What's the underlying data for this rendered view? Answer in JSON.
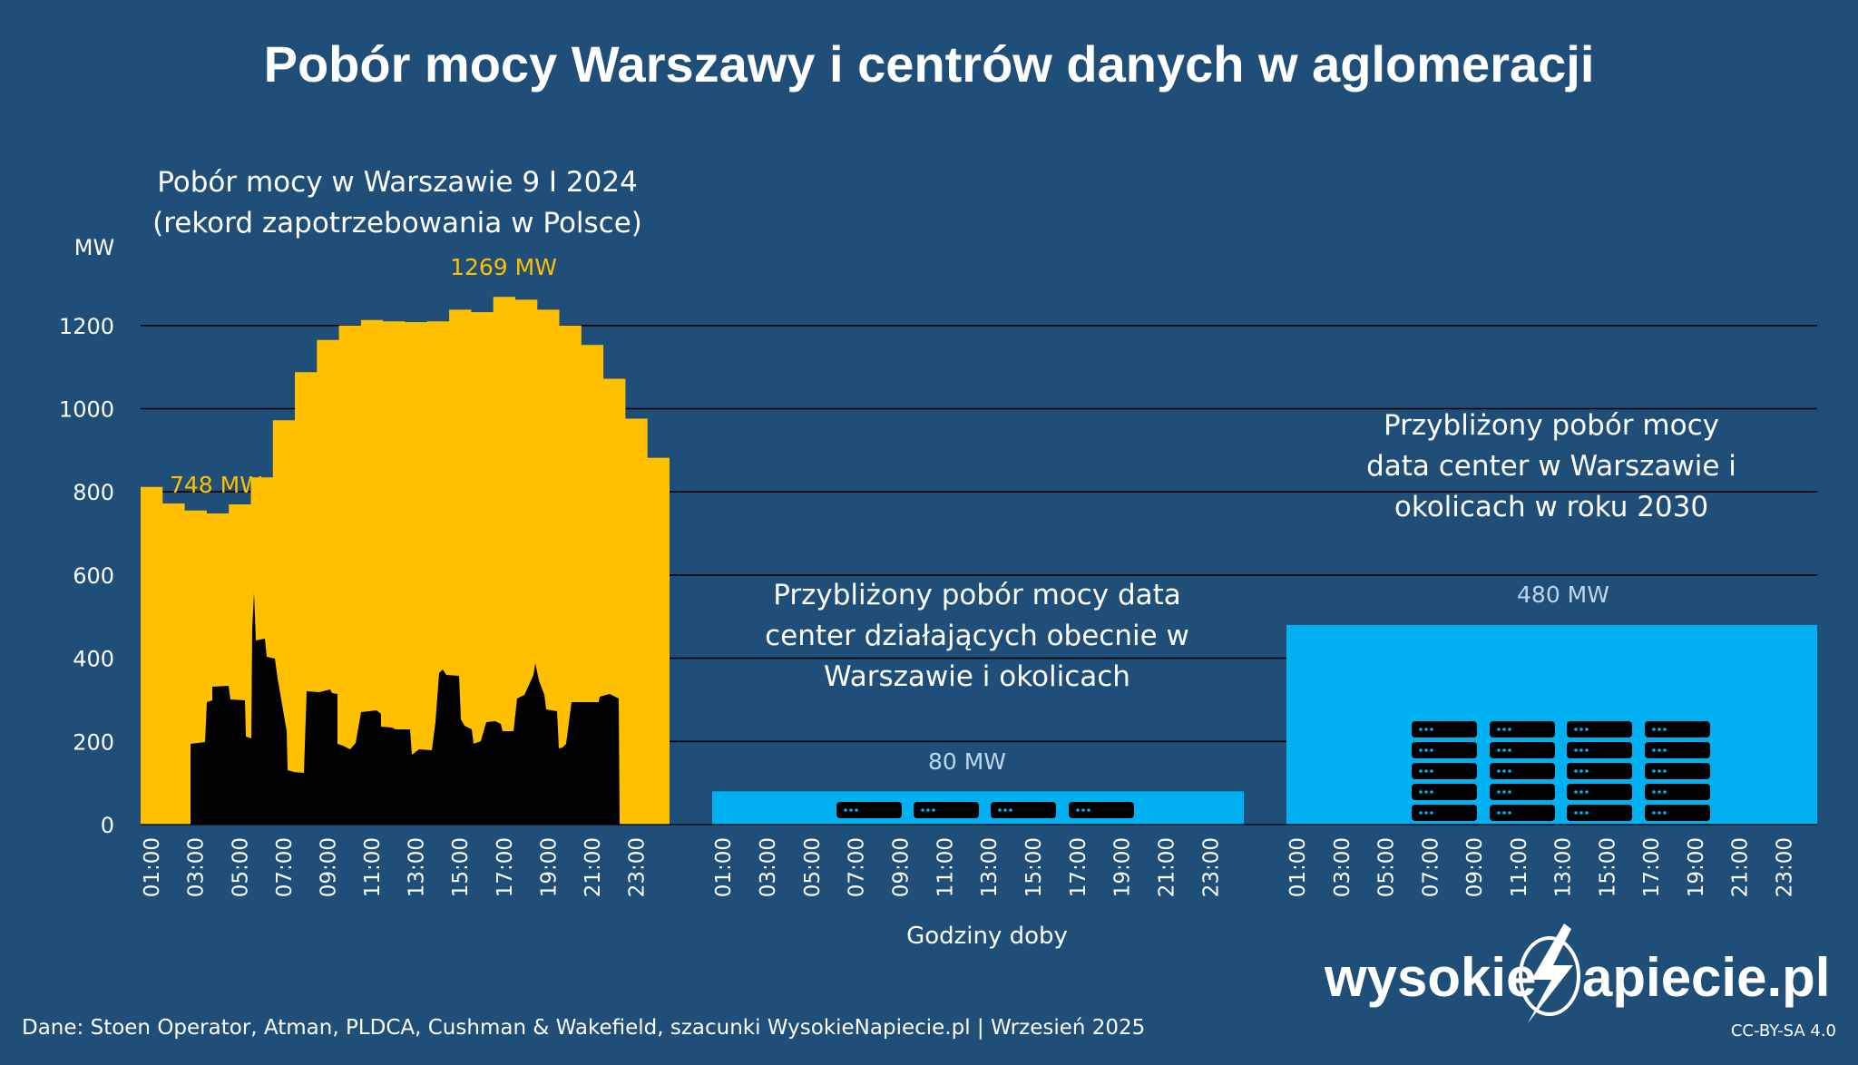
{
  "title": "Pobór mocy Warszawy i centrów danych w aglomeracji",
  "colors": {
    "background": "#1f4e79",
    "warsaw_area": "#ffc000",
    "skyline": "#000000",
    "datacenter": "#00b0f0",
    "label_warsaw": "#ffc000",
    "label_datacenter": "#bdd7ee"
  },
  "chart_data": [
    {
      "type": "area",
      "title": "Pobór mocy w Warszawie 9 I 2024 (rekord zapotrzebowania w Polsce)",
      "title_lines": [
        "Pobór mocy w Warszawie 9 I 2024",
        "(rekord zapotrzebowania w Polsce)"
      ],
      "ylabel": "MW",
      "xlabel": "Godziny doby",
      "ylim": [
        0,
        1300
      ],
      "yticks": [
        0,
        200,
        400,
        600,
        800,
        1000,
        1200
      ],
      "x": [
        "01:00",
        "02:00",
        "03:00",
        "04:00",
        "05:00",
        "06:00",
        "07:00",
        "08:00",
        "09:00",
        "10:00",
        "11:00",
        "12:00",
        "13:00",
        "14:00",
        "15:00",
        "16:00",
        "17:00",
        "18:00",
        "19:00",
        "20:00",
        "21:00",
        "22:00",
        "23:00",
        "24:00"
      ],
      "xtick_labels": [
        "01:00",
        "03:00",
        "05:00",
        "07:00",
        "09:00",
        "11:00",
        "13:00",
        "15:00",
        "17:00",
        "19:00",
        "21:00",
        "23:00"
      ],
      "values": [
        812,
        772,
        755,
        748,
        770,
        835,
        972,
        1088,
        1165,
        1200,
        1213,
        1210,
        1208,
        1210,
        1238,
        1232,
        1269,
        1262,
        1238,
        1200,
        1153,
        1072,
        976,
        882
      ],
      "annotations": [
        {
          "text": "748 MW",
          "hour_index": 3,
          "value": 748
        },
        {
          "text": "1269 MW",
          "hour_index": 16,
          "value": 1269
        }
      ]
    },
    {
      "type": "bar",
      "title": "Przybliżony pobór mocy data center działających obecnie w Warszawie i okolicach",
      "title_lines": [
        "Przybliżony pobór mocy data",
        "center działających obecnie w",
        "Warszawie i okolicach"
      ],
      "x": [
        "01:00",
        "02:00",
        "03:00",
        "04:00",
        "05:00",
        "06:00",
        "07:00",
        "08:00",
        "09:00",
        "10:00",
        "11:00",
        "12:00",
        "13:00",
        "14:00",
        "15:00",
        "16:00",
        "17:00",
        "18:00",
        "19:00",
        "20:00",
        "21:00",
        "22:00",
        "23:00",
        "24:00"
      ],
      "xtick_labels": [
        "01:00",
        "03:00",
        "05:00",
        "07:00",
        "09:00",
        "11:00",
        "13:00",
        "15:00",
        "17:00",
        "19:00",
        "21:00",
        "23:00"
      ],
      "value": 80,
      "label": "80 MW"
    },
    {
      "type": "bar",
      "title": "Przybliżony pobór mocy data center w Warszawie i okolicach w roku 2030",
      "title_lines": [
        "Przybliżony pobór mocy",
        "data center w Warszawie i",
        "okolicach w roku 2030"
      ],
      "x": [
        "01:00",
        "02:00",
        "03:00",
        "04:00",
        "05:00",
        "06:00",
        "07:00",
        "08:00",
        "09:00",
        "10:00",
        "11:00",
        "12:00",
        "13:00",
        "14:00",
        "15:00",
        "16:00",
        "17:00",
        "18:00",
        "19:00",
        "20:00",
        "21:00",
        "22:00",
        "23:00",
        "24:00"
      ],
      "xtick_labels": [
        "01:00",
        "03:00",
        "05:00",
        "07:00",
        "09:00",
        "11:00",
        "13:00",
        "15:00",
        "17:00",
        "19:00",
        "21:00",
        "23:00"
      ],
      "value": 480,
      "label": "480 MW"
    }
  ],
  "footer": {
    "source": "Dane: Stoen Operator, Atman, PLDCA, Cushman & Wakefield, szacunki WysokieNapiecie.pl    |    Wrzesień 2025",
    "license": "CC-BY-SA 4.0"
  },
  "logo": {
    "left": "wysokie",
    "right": "apiecie.pl",
    "icon": "lightning-n-logo-icon"
  }
}
